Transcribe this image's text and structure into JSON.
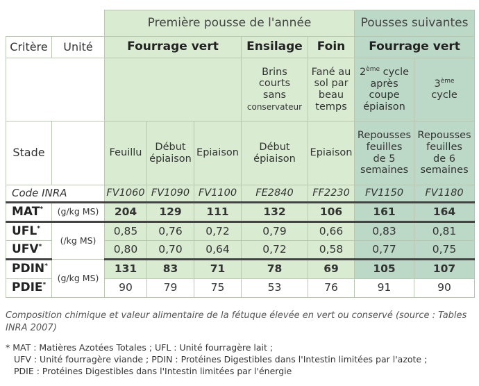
{
  "header": {
    "first_group": "Première pousse de l'année",
    "second_group": "Pousses suivantes"
  },
  "labels": {
    "critere": "Critère",
    "unite": "Unité",
    "fourrage_vert_1": "Fourrage vert",
    "ensilage": "Ensilage",
    "foin": "Foin",
    "fourrage_vert_2": "Fourrage vert",
    "stade": "Stade",
    "code_inra": "Code INRA"
  },
  "conditions": {
    "ensilage": [
      "Brins",
      "courts",
      "sans",
      "conservateur"
    ],
    "foin": [
      "Fané au",
      "sol par",
      "beau",
      "temps"
    ],
    "cycle2_num": "2",
    "cycle2_sup": "ème",
    "cycle2_word": "cycle",
    "cycle2_rest": [
      "après",
      "coupe",
      "épiaison"
    ],
    "cycle3_num": "3",
    "cycle3_sup": "ème",
    "cycle3_word": "cycle"
  },
  "stages": [
    [
      "Feuillu"
    ],
    [
      "Début",
      "épiaison"
    ],
    [
      "Epiaison"
    ],
    [
      "Début",
      "épiaison"
    ],
    [
      "Epiaison"
    ],
    [
      "Repousses",
      "feuilles",
      "de 5",
      "semaines"
    ],
    [
      "Repousses",
      "feuilles",
      "de 6",
      "semaines"
    ]
  ],
  "codes": [
    "FV1060",
    "FV1090",
    "FV1100",
    "FE2840",
    "FF2230",
    "FV1150",
    "FV1180"
  ],
  "rows": [
    {
      "name": "MAT",
      "star": "*",
      "unit": "(g/kg MS)",
      "values": [
        "204",
        "129",
        "111",
        "132",
        "106",
        "161",
        "164"
      ]
    },
    {
      "name": "UFL",
      "star": "*",
      "unit": "(/kg MS)",
      "values": [
        "0,85",
        "0,76",
        "0,72",
        "0,79",
        "0,66",
        "0,83",
        "0,81"
      ]
    },
    {
      "name": "UFV",
      "star": "*",
      "values": [
        "0,80",
        "0,70",
        "0,64",
        "0,72",
        "0,58",
        "0,77",
        "0,75"
      ]
    },
    {
      "name": "PDIN",
      "star": "*",
      "unit": "(g/kg MS)",
      "values": [
        "131",
        "83",
        "71",
        "78",
        "69",
        "105",
        "107"
      ]
    },
    {
      "name": "PDIE",
      "star": "*",
      "values": [
        "90",
        "79",
        "75",
        "53",
        "76",
        "91",
        "90"
      ]
    }
  ],
  "caption": "Composition chimique et valeur alimentaire de la fétuque élevée en vert ou conservé (source : Tables INRA 2007)",
  "notes": [
    "* MAT : Matières Azotées Totales ; UFL : Unité fourragère lait ;",
    "UFV : Unité fourragère viande ; PDIN : Protéines Digestibles dans l'Intestin limitées par l'azote ;",
    "PDIE : Protéines Digestibles dans l'Intestin limitées par l'énergie"
  ]
}
